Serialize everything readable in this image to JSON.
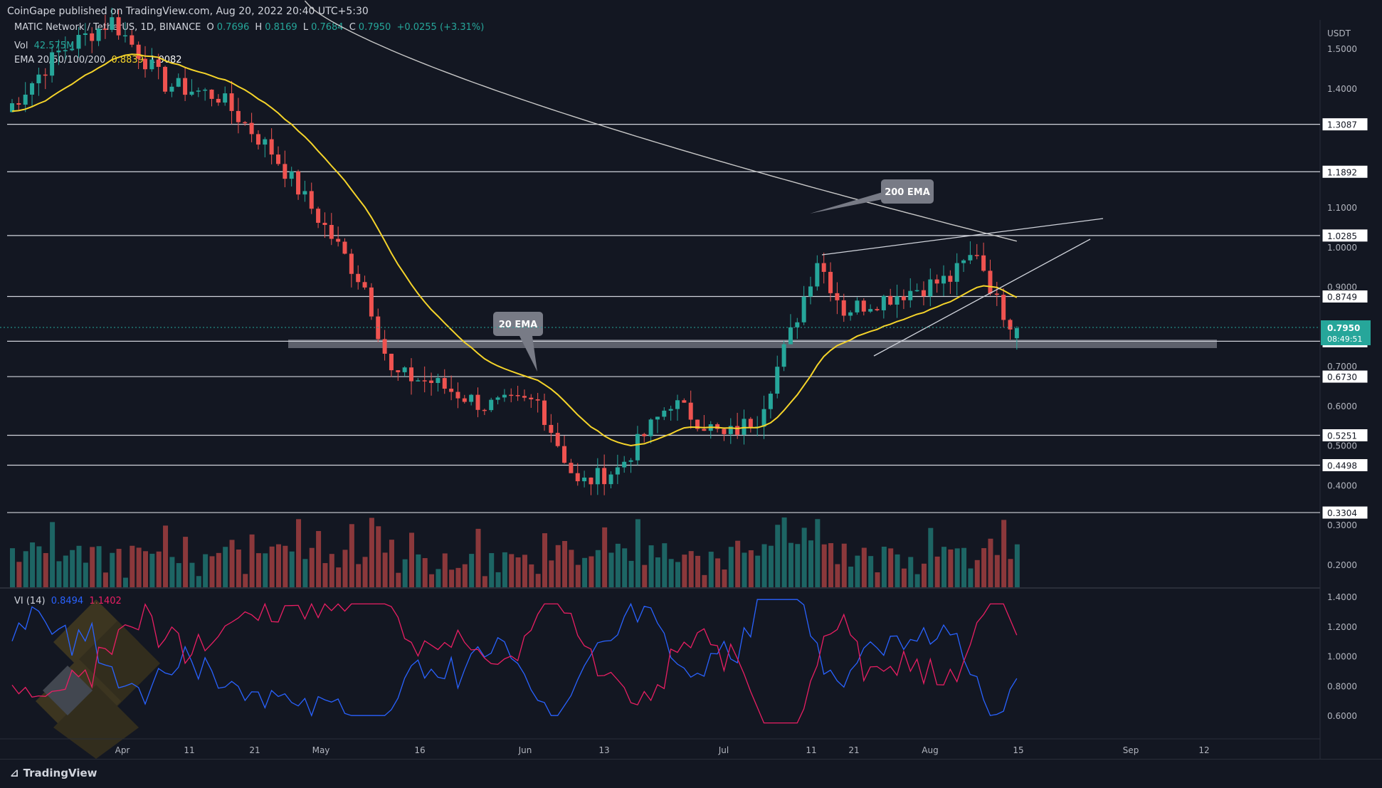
{
  "header": {
    "published": "CoinGape published on TradingView.com, Aug 20, 2022 20:40 UTC+5:30"
  },
  "symbol": {
    "name": "MATIC Network / TetherUS, 1D, BINANCE",
    "o_label": "O",
    "o": "0.7696",
    "h_label": "H",
    "h": "0.8169",
    "l_label": "L",
    "l": "0.7684",
    "c_label": "C",
    "c": "0.7950",
    "change": "+0.0255 (+3.31%)"
  },
  "legend": {
    "vol_label": "Vol",
    "vol_value": "42.575M",
    "ema_label": "EMA 20/50/100/200",
    "ema20": "0.8839",
    "ema200": "1.0082"
  },
  "indicator": {
    "name": "VI (14)",
    "plus": "0.8494",
    "minus": "1.1402"
  },
  "colors": {
    "bg": "#131722",
    "up": "#26a69a",
    "down": "#ef5350",
    "ema20": "#f5d42a",
    "ema200": "#c8c8c8",
    "vi_plus": "#2962ff",
    "vi_minus": "#e91e63",
    "level": "#d1d4dc",
    "zone": "#787b86"
  },
  "axis": {
    "currency": "USDT",
    "price_ticks": [
      "1.5000",
      "1.4000",
      "1.1000",
      "1.0000",
      "0.9000",
      "0.7000",
      "0.6000",
      "0.5000",
      "0.4000",
      "0.3000",
      "0.2000"
    ],
    "vi_ticks": [
      "1.4000",
      "1.2000",
      "1.0000",
      "0.8000",
      "0.6000"
    ],
    "time_ticks": [
      "Apr",
      "11",
      "21",
      "May",
      "16",
      "Jun",
      "13",
      "Jul",
      "11",
      "21",
      "Aug",
      "15",
      "Sep",
      "12"
    ]
  },
  "current_price": {
    "value": "0.7950",
    "countdown": "08:49:51"
  },
  "levels": [
    "1.3087",
    "1.1892",
    "1.0285",
    "0.8749",
    "0.7621",
    "0.6730",
    "0.5251",
    "0.4498",
    "0.3304"
  ],
  "annotations": {
    "ema200": "200 EMA",
    "ema20": "20 EMA"
  },
  "footer": {
    "brand": "TradingView"
  },
  "chart_data": {
    "type": "candlestick",
    "title": "MATIC Network / TetherUS, 1D, BINANCE",
    "ylabel": "USDT",
    "ylim": [
      0.15,
      1.55
    ],
    "support_zone": 0.7621,
    "horizontal_levels": [
      1.3087,
      1.1892,
      1.0285,
      0.8749,
      0.7621,
      0.673,
      0.5251,
      0.4498,
      0.3304
    ],
    "indicators": [
      "EMA 20",
      "EMA 200",
      "Volume",
      "Vortex Indicator (14)"
    ],
    "annotations": [
      "200 EMA",
      "20 EMA"
    ],
    "last_candle": {
      "open": 0.7696,
      "high": 0.8169,
      "low": 0.7684,
      "close": 0.795
    },
    "ema20_last": 0.8839,
    "ema200_last": 1.0082,
    "vi_plus_last": 0.8494,
    "vi_minus_last": 1.1402,
    "x_ticks": [
      "Apr",
      "11",
      "21",
      "May",
      "16",
      "Jun",
      "13",
      "Jul",
      "11",
      "21",
      "Aug",
      "15",
      "Sep",
      "12"
    ]
  }
}
